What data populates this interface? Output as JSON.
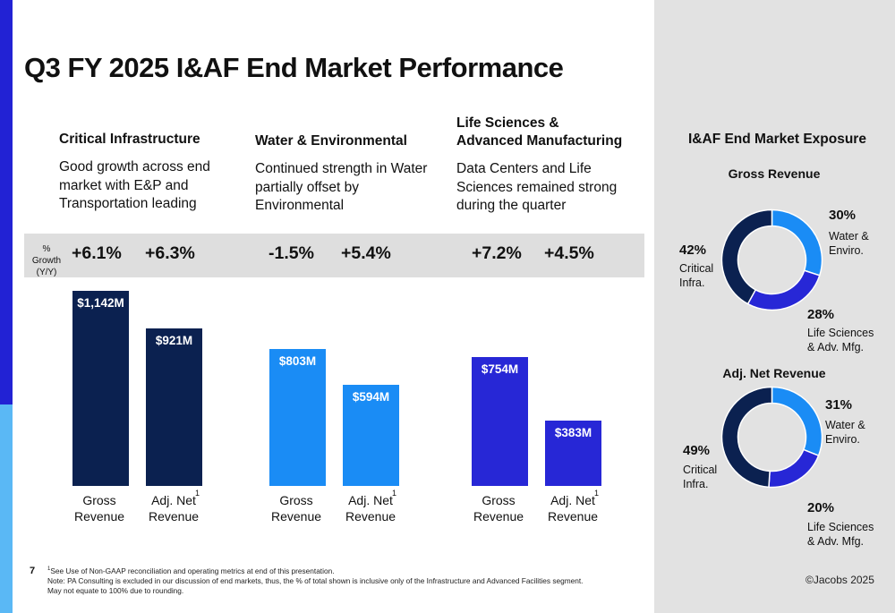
{
  "title": "Q3 FY 2025 I&AF End Market Performance",
  "colors": {
    "critical_infra": "#0b2150",
    "water_enviro": "#1a8cf5",
    "life_sciences": "#2727d6",
    "accent_top": "#2222d4",
    "accent_bottom": "#5ab8f5"
  },
  "growth_label": "% Growth (Y/Y)",
  "segments": [
    {
      "title_lines": [
        "Critical Infrastructure"
      ],
      "description": "Good growth across end market with E&P and Transportation leading",
      "growth": [
        "+6.1%",
        "+6.3%"
      ]
    },
    {
      "title_lines": [
        "Water & Environmental"
      ],
      "description": "Continued strength in Water partially offset by Environmental",
      "growth": [
        "-1.5%",
        "+5.4%"
      ]
    },
    {
      "title_lines": [
        "Life Sciences &",
        "Advanced Manufacturing"
      ],
      "description": "Data Centers and Life Sciences remained strong during the quarter",
      "growth": [
        "+7.2%",
        "+4.5%"
      ]
    }
  ],
  "chart_data": [
    {
      "type": "bar",
      "categories": [
        "Critical Infrastructure",
        "Water & Environmental",
        "Life Sciences & Advanced Manufacturing"
      ],
      "series": [
        {
          "name": "Gross Revenue",
          "values": [
            1142,
            803,
            754
          ],
          "labels": [
            "$1,142M",
            "$803M",
            "$754M"
          ]
        },
        {
          "name": "Adj. Net Revenue",
          "values": [
            921,
            594,
            383
          ],
          "labels": [
            "$921M",
            "$594M",
            "$383M"
          ]
        }
      ],
      "bar_captions": [
        {
          "line1": "Gross",
          "line2": "Revenue",
          "sup": ""
        },
        {
          "line1": "Adj. Net",
          "line2": "Revenue",
          "sup": "1"
        }
      ],
      "ylim": [
        0,
        1142
      ]
    },
    {
      "type": "pie",
      "title": "Gross Revenue",
      "slices": [
        {
          "label_lines": [
            "Water &",
            "Enviro."
          ],
          "value": 30,
          "pct": "30%"
        },
        {
          "label_lines": [
            "Life Sciences",
            "& Adv. Mfg."
          ],
          "value": 28,
          "pct": "28%"
        },
        {
          "label_lines": [
            "Critical",
            "Infra."
          ],
          "value": 42,
          "pct": "42%"
        }
      ]
    },
    {
      "type": "pie",
      "title": "Adj. Net Revenue",
      "slices": [
        {
          "label_lines": [
            "Water &",
            "Enviro."
          ],
          "value": 31,
          "pct": "31%"
        },
        {
          "label_lines": [
            "Life Sciences",
            "& Adv. Mfg."
          ],
          "value": 20,
          "pct": "20%"
        },
        {
          "label_lines": [
            "Critical",
            "Infra."
          ],
          "value": 49,
          "pct": "49%"
        }
      ]
    }
  ],
  "exposure_title": "I&AF End Market Exposure",
  "page_number": "7",
  "footnotes": [
    "See Use of Non-GAAP reconciliation and operating metrics at end of this presentation.",
    "Note: PA Consulting is excluded in our discussion of end markets, thus, the % of total shown is inclusive only of the Infrastructure and Advanced Facilities segment.",
    "May not equate to 100% due to rounding."
  ],
  "footnote_marker": "1",
  "copyright": "©Jacobs 2025"
}
